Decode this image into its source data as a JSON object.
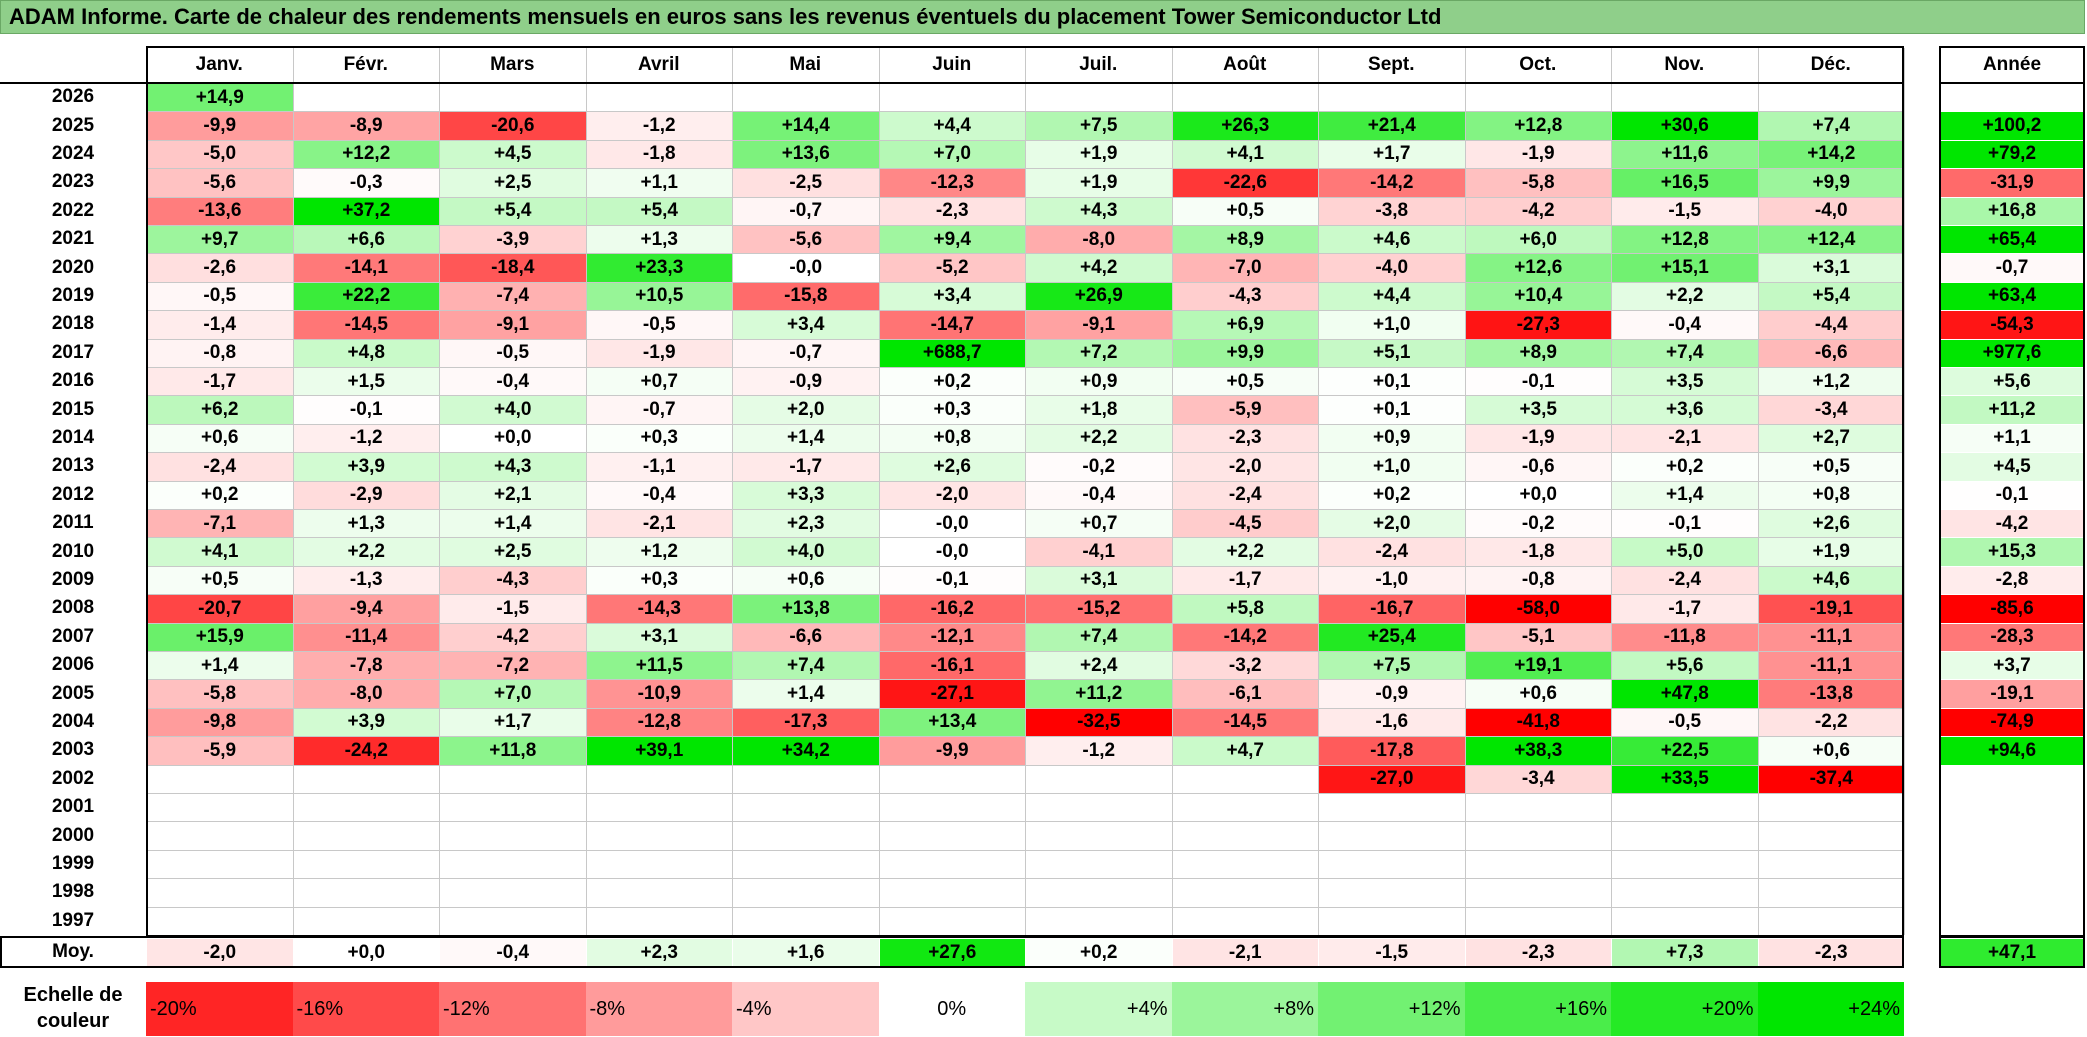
{
  "title": "ADAM Informe. Carte de chaleur des rendements mensuels en euros sans les revenus éventuels du placement Tower Semiconductor Ltd",
  "chart_data": {
    "type": "heatmap",
    "months": [
      "Janv.",
      "Févr.",
      "Mars",
      "Avril",
      "Mai",
      "Juin",
      "Juil.",
      "Août",
      "Sept.",
      "Oct.",
      "Nov.",
      "Déc."
    ],
    "year_header": "Année",
    "avg_label": "Moy.",
    "rows": [
      {
        "year": "2026",
        "values": [
          "+14,9",
          null,
          null,
          null,
          null,
          null,
          null,
          null,
          null,
          null,
          null,
          null
        ],
        "total": null
      },
      {
        "year": "2025",
        "values": [
          "-9,9",
          "-8,9",
          "-20,6",
          "-1,2",
          "+14,4",
          "+4,4",
          "+7,5",
          "+26,3",
          "+21,4",
          "+12,8",
          "+30,6",
          "+7,4"
        ],
        "total": "+100,2"
      },
      {
        "year": "2024",
        "values": [
          "-5,0",
          "+12,2",
          "+4,5",
          "-1,8",
          "+13,6",
          "+7,0",
          "+1,9",
          "+4,1",
          "+1,7",
          "-1,9",
          "+11,6",
          "+14,2"
        ],
        "total": "+79,2"
      },
      {
        "year": "2023",
        "values": [
          "-5,6",
          "-0,3",
          "+2,5",
          "+1,1",
          "-2,5",
          "-12,3",
          "+1,9",
          "-22,6",
          "-14,2",
          "-5,8",
          "+16,5",
          "+9,9"
        ],
        "total": "-31,9"
      },
      {
        "year": "2022",
        "values": [
          "-13,6",
          "+37,2",
          "+5,4",
          "+5,4",
          "-0,7",
          "-2,3",
          "+4,3",
          "+0,5",
          "-3,8",
          "-4,2",
          "-1,5",
          "-4,0"
        ],
        "total": "+16,8"
      },
      {
        "year": "2021",
        "values": [
          "+9,7",
          "+6,6",
          "-3,9",
          "+1,3",
          "-5,6",
          "+9,4",
          "-8,0",
          "+8,9",
          "+4,6",
          "+6,0",
          "+12,8",
          "+12,4"
        ],
        "total": "+65,4"
      },
      {
        "year": "2020",
        "values": [
          "-2,6",
          "-14,1",
          "-18,4",
          "+23,3",
          "-0,0",
          "-5,2",
          "+4,2",
          "-7,0",
          "-4,0",
          "+12,6",
          "+15,1",
          "+3,1"
        ],
        "total": "-0,7"
      },
      {
        "year": "2019",
        "values": [
          "-0,5",
          "+22,2",
          "-7,4",
          "+10,5",
          "-15,8",
          "+3,4",
          "+26,9",
          "-4,3",
          "+4,4",
          "+10,4",
          "+2,2",
          "+5,4"
        ],
        "total": "+63,4"
      },
      {
        "year": "2018",
        "values": [
          "-1,4",
          "-14,5",
          "-9,1",
          "-0,5",
          "+3,4",
          "-14,7",
          "-9,1",
          "+6,9",
          "+1,0",
          "-27,3",
          "-0,4",
          "-4,4"
        ],
        "total": "-54,3"
      },
      {
        "year": "2017",
        "values": [
          "-0,8",
          "+4,8",
          "-0,5",
          "-1,9",
          "-0,7",
          "+688,7",
          "+7,2",
          "+9,9",
          "+5,1",
          "+8,9",
          "+7,4",
          "-6,6"
        ],
        "total": "+977,6"
      },
      {
        "year": "2016",
        "values": [
          "-1,7",
          "+1,5",
          "-0,4",
          "+0,7",
          "-0,9",
          "+0,2",
          "+0,9",
          "+0,5",
          "+0,1",
          "-0,1",
          "+3,5",
          "+1,2"
        ],
        "total": "+5,6"
      },
      {
        "year": "2015",
        "values": [
          "+6,2",
          "-0,1",
          "+4,0",
          "-0,7",
          "+2,0",
          "+0,3",
          "+1,8",
          "-5,9",
          "+0,1",
          "+3,5",
          "+3,6",
          "-3,4"
        ],
        "total": "+11,2"
      },
      {
        "year": "2014",
        "values": [
          "+0,6",
          "-1,2",
          "+0,0",
          "+0,3",
          "+1,4",
          "+0,8",
          "+2,2",
          "-2,3",
          "+0,9",
          "-1,9",
          "-2,1",
          "+2,7"
        ],
        "total": "+1,1"
      },
      {
        "year": "2013",
        "values": [
          "-2,4",
          "+3,9",
          "+4,3",
          "-1,1",
          "-1,7",
          "+2,6",
          "-0,2",
          "-2,0",
          "+1,0",
          "-0,6",
          "+0,2",
          "+0,5"
        ],
        "total": "+4,5"
      },
      {
        "year": "2012",
        "values": [
          "+0,2",
          "-2,9",
          "+2,1",
          "-0,4",
          "+3,3",
          "-2,0",
          "-0,4",
          "-2,4",
          "+0,2",
          "+0,0",
          "+1,4",
          "+0,8"
        ],
        "total": "-0,1"
      },
      {
        "year": "2011",
        "values": [
          "-7,1",
          "+1,3",
          "+1,4",
          "-2,1",
          "+2,3",
          "-0,0",
          "+0,7",
          "-4,5",
          "+2,0",
          "-0,2",
          "-0,1",
          "+2,6"
        ],
        "total": "-4,2"
      },
      {
        "year": "2010",
        "values": [
          "+4,1",
          "+2,2",
          "+2,5",
          "+1,2",
          "+4,0",
          "-0,0",
          "-4,1",
          "+2,2",
          "-2,4",
          "-1,8",
          "+5,0",
          "+1,9"
        ],
        "total": "+15,3"
      },
      {
        "year": "2009",
        "values": [
          "+0,5",
          "-1,3",
          "-4,3",
          "+0,3",
          "+0,6",
          "-0,1",
          "+3,1",
          "-1,7",
          "-1,0",
          "-0,8",
          "-2,4",
          "+4,6"
        ],
        "total": "-2,8"
      },
      {
        "year": "2008",
        "values": [
          "-20,7",
          "-9,4",
          "-1,5",
          "-14,3",
          "+13,8",
          "-16,2",
          "-15,2",
          "+5,8",
          "-16,7",
          "-58,0",
          "-1,7",
          "-19,1"
        ],
        "total": "-85,6"
      },
      {
        "year": "2007",
        "values": [
          "+15,9",
          "-11,4",
          "-4,2",
          "+3,1",
          "-6,6",
          "-12,1",
          "+7,4",
          "-14,2",
          "+25,4",
          "-5,1",
          "-11,8",
          "-11,1"
        ],
        "total": "-28,3"
      },
      {
        "year": "2006",
        "values": [
          "+1,4",
          "-7,8",
          "-7,2",
          "+11,5",
          "+7,4",
          "-16,1",
          "+2,4",
          "-3,2",
          "+7,5",
          "+19,1",
          "+5,6",
          "-11,1"
        ],
        "total": "+3,7"
      },
      {
        "year": "2005",
        "values": [
          "-5,8",
          "-8,0",
          "+7,0",
          "-10,9",
          "+1,4",
          "-27,1",
          "+11,2",
          "-6,1",
          "-0,9",
          "+0,6",
          "+47,8",
          "-13,8"
        ],
        "total": "-19,1"
      },
      {
        "year": "2004",
        "values": [
          "-9,8",
          "+3,9",
          "+1,7",
          "-12,8",
          "-17,3",
          "+13,4",
          "-32,5",
          "-14,5",
          "-1,6",
          "-41,8",
          "-0,5",
          "-2,2"
        ],
        "total": "-74,9"
      },
      {
        "year": "2003",
        "values": [
          "-5,9",
          "-24,2",
          "+11,8",
          "+39,1",
          "+34,2",
          "-9,9",
          "-1,2",
          "+4,7",
          "-17,8",
          "+38,3",
          "+22,5",
          "+0,6"
        ],
        "total": "+94,6"
      },
      {
        "year": "2002",
        "values": [
          null,
          null,
          null,
          null,
          null,
          null,
          null,
          null,
          "-27,0",
          "-3,4",
          "+33,5",
          "-37,4"
        ],
        "total": null
      },
      {
        "year": "2001",
        "values": [
          null,
          null,
          null,
          null,
          null,
          null,
          null,
          null,
          null,
          null,
          null,
          null
        ],
        "total": null
      },
      {
        "year": "2000",
        "values": [
          null,
          null,
          null,
          null,
          null,
          null,
          null,
          null,
          null,
          null,
          null,
          null
        ],
        "total": null
      },
      {
        "year": "1999",
        "values": [
          null,
          null,
          null,
          null,
          null,
          null,
          null,
          null,
          null,
          null,
          null,
          null
        ],
        "total": null
      },
      {
        "year": "1998",
        "values": [
          null,
          null,
          null,
          null,
          null,
          null,
          null,
          null,
          null,
          null,
          null,
          null
        ],
        "total": null
      },
      {
        "year": "1997",
        "values": [
          null,
          null,
          null,
          null,
          null,
          null,
          null,
          null,
          null,
          null,
          null,
          null
        ],
        "total": null
      }
    ],
    "averages": [
      "-2,0",
      "+0,0",
      "-0,4",
      "+2,3",
      "+1,6",
      "+27,6",
      "+0,2",
      "-2,1",
      "-1,5",
      "-2,3",
      "+7,3",
      "-2,3"
    ],
    "average_total": "+47,1",
    "scale_label": "Echelle de couleur",
    "scale": [
      {
        "label": "-20%",
        "value": -20
      },
      {
        "label": "-16%",
        "value": -16
      },
      {
        "label": "-12%",
        "value": -12
      },
      {
        "label": "-8%",
        "value": -8
      },
      {
        "label": "-4%",
        "value": -4
      },
      {
        "label": "0%",
        "value": 0
      },
      {
        "label": "+4%",
        "value": 4
      },
      {
        "label": "+8%",
        "value": 8
      },
      {
        "label": "+12%",
        "value": 12
      },
      {
        "label": "+16%",
        "value": 16
      },
      {
        "label": "+20%",
        "value": 20
      },
      {
        "label": "+24%",
        "value": 24
      }
    ],
    "colors": {
      "negative": "#ff0000",
      "positive": "#00e600",
      "neutral": "#ffffff",
      "title_bar": "#8fcf8a"
    }
  }
}
